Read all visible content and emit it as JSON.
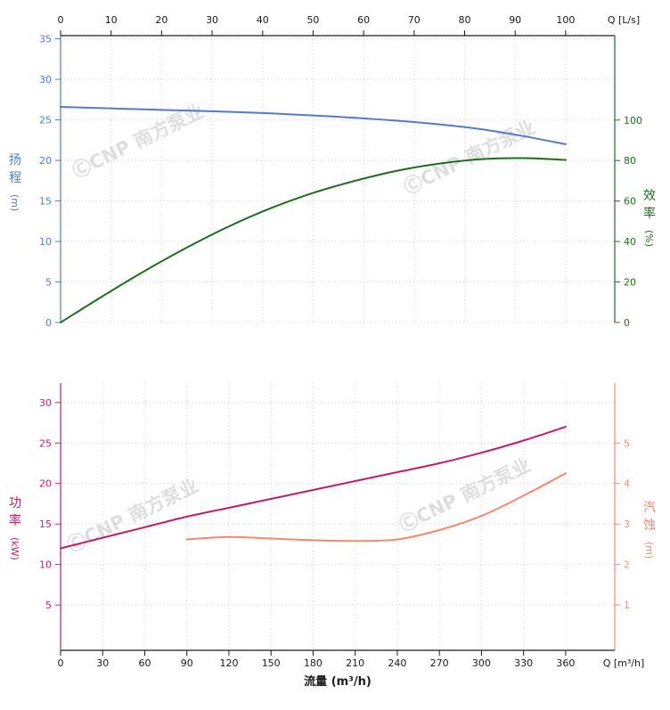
{
  "watermark": {
    "symbol": "Ⓒ",
    "text": "CNP 南方泵业"
  },
  "colors": {
    "head": "#4f7dcd",
    "efficiency": "#1a701a",
    "power": "#c01e6a",
    "npsh": "#f5886a",
    "axis": "#1a1a1a",
    "grid": "#cccccc",
    "watermark": "#d6d6d6"
  },
  "chart_data": [
    {
      "type": "line",
      "panel": "top",
      "grid": true,
      "x": {
        "unit": "m³/h",
        "range": [
          0,
          395
        ],
        "top_axis": {
          "label": "Q [L/s]",
          "ticks": [
            0,
            10,
            20,
            30,
            40,
            50,
            60,
            70,
            80,
            90,
            100
          ],
          "to_m3h": 3.6
        }
      },
      "y_left": {
        "label": "扬程",
        "unit": "(m)",
        "range": [
          0,
          35.4
        ],
        "ticks": [
          0,
          5,
          10,
          15,
          20,
          25,
          30,
          35
        ],
        "color_key": "head"
      },
      "y_right": {
        "label": "效率",
        "unit": "(%)",
        "range": [
          0,
          141.7
        ],
        "ticks": [
          0,
          20,
          40,
          60,
          80,
          100
        ],
        "color_key": "efficiency"
      },
      "series": [
        {
          "name": "head",
          "axis": "left",
          "color_key": "head",
          "x": [
            0,
            30,
            60,
            90,
            120,
            150,
            180,
            210,
            240,
            270,
            300,
            330,
            360
          ],
          "values": [
            26.6,
            26.45,
            26.3,
            26.15,
            26.0,
            25.8,
            25.55,
            25.25,
            24.9,
            24.45,
            23.85,
            23.0,
            22.0
          ]
        },
        {
          "name": "efficiency",
          "axis": "right",
          "color_key": "efficiency",
          "x": [
            0,
            30,
            60,
            90,
            120,
            150,
            180,
            210,
            240,
            270,
            300,
            330,
            360
          ],
          "values": [
            0,
            13,
            25.5,
            37,
            47.5,
            56.5,
            64,
            70,
            75,
            78.5,
            80.7,
            81.2,
            80.3
          ]
        }
      ]
    },
    {
      "type": "line",
      "panel": "bottom",
      "grid": true,
      "x": {
        "unit": "m³/h",
        "range": [
          0,
          395
        ],
        "bottom_axis": {
          "label": "Q [m³/h]",
          "title": "流量 (m³/h)",
          "ticks": [
            0,
            30,
            60,
            90,
            120,
            150,
            180,
            210,
            240,
            270,
            300,
            330,
            360
          ]
        }
      },
      "y_left": {
        "label": "功率",
        "unit": "(kW)",
        "range": [
          -0.6,
          32.4
        ],
        "ticks": [
          5,
          10,
          15,
          20,
          25,
          30
        ],
        "color_key": "power"
      },
      "y_right": {
        "label": "汽蚀",
        "unit": "(m)",
        "range": [
          -0.12,
          6.48
        ],
        "ticks": [
          1,
          2,
          3,
          4,
          5
        ],
        "color_key": "npsh"
      },
      "series": [
        {
          "name": "power",
          "axis": "left",
          "color_key": "power",
          "x": [
            0,
            30,
            60,
            90,
            120,
            150,
            180,
            210,
            240,
            270,
            300,
            330,
            360
          ],
          "values": [
            12.0,
            13.3,
            14.6,
            15.9,
            17.0,
            18.1,
            19.2,
            20.3,
            21.4,
            22.5,
            23.8,
            25.3,
            27.0
          ]
        },
        {
          "name": "npsh",
          "axis": "right",
          "color_key": "npsh",
          "x": [
            90,
            120,
            150,
            180,
            210,
            240,
            270,
            300,
            330,
            360
          ],
          "values": [
            2.62,
            2.68,
            2.64,
            2.6,
            2.58,
            2.62,
            2.85,
            3.2,
            3.7,
            4.25
          ]
        }
      ]
    }
  ]
}
